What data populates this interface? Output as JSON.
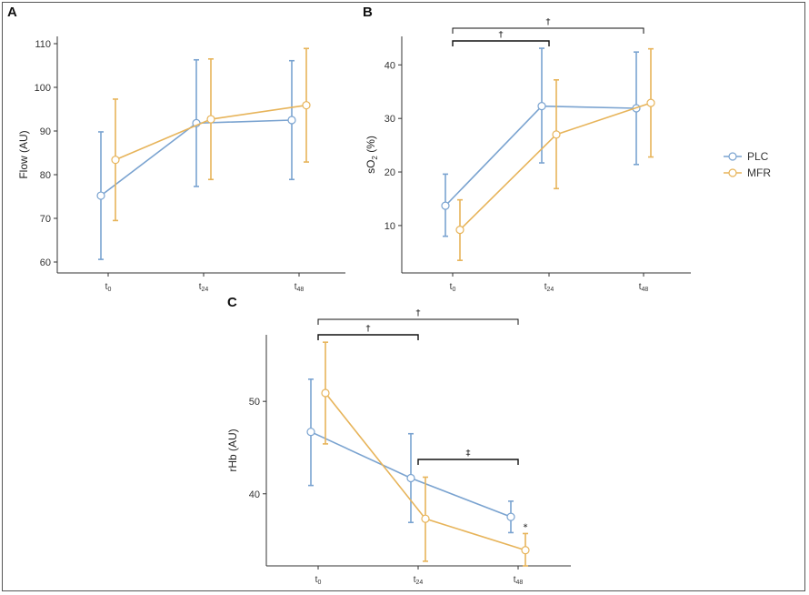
{
  "colors": {
    "PLC": "#7aa3d0",
    "MFR": "#e7b45a"
  },
  "legend": {
    "items": [
      {
        "key": "PLC",
        "label": "PLC"
      },
      {
        "key": "MFR",
        "label": "MFR"
      }
    ]
  },
  "chart_data": [
    {
      "panel": "A",
      "type": "line",
      "ylabel": "Flow (AU)",
      "ylim": [
        60,
        110
      ],
      "yticks": [
        60,
        70,
        80,
        90,
        100,
        110
      ],
      "categories": [
        {
          "main": "t",
          "sub": "0"
        },
        {
          "main": "t",
          "sub": "24"
        },
        {
          "main": "t",
          "sub": "48"
        }
      ],
      "series": [
        {
          "name": "PLC",
          "values": [
            75.2,
            91.8,
            92.5
          ],
          "lower": [
            60.6,
            77.3,
            78.9
          ],
          "upper": [
            89.8,
            106.3,
            106.1
          ]
        },
        {
          "name": "MFR",
          "values": [
            83.4,
            92.7,
            95.9
          ],
          "lower": [
            69.5,
            78.9,
            82.9
          ],
          "upper": [
            97.3,
            106.5,
            108.9
          ]
        }
      ],
      "brackets": []
    },
    {
      "panel": "B",
      "type": "line",
      "ylabel_main": "sO",
      "ylabel_sub": "2",
      "ylabel_rest": " (%)",
      "ylim": [
        2,
        46
      ],
      "yticks": [
        10,
        20,
        30,
        40
      ],
      "categories": [
        {
          "main": "t",
          "sub": "0"
        },
        {
          "main": "t",
          "sub": "24"
        },
        {
          "main": "t",
          "sub": "48"
        }
      ],
      "series": [
        {
          "name": "PLC",
          "values": [
            13.7,
            32.3,
            31.9
          ],
          "lower": [
            8.0,
            21.7,
            21.4
          ],
          "upper": [
            19.6,
            43.1,
            42.4
          ]
        },
        {
          "name": "MFR",
          "values": [
            9.2,
            27.0,
            32.9
          ],
          "lower": [
            3.5,
            16.9,
            22.8
          ],
          "upper": [
            14.8,
            37.2,
            43.0
          ]
        }
      ],
      "brackets": [
        {
          "from": 0,
          "to": 1,
          "symbol": "†",
          "level": 1
        },
        {
          "from": 0,
          "to": 2,
          "symbol": "†",
          "level": 2
        }
      ]
    },
    {
      "panel": "C",
      "type": "line",
      "ylabel": "rHb (AU)",
      "ylim": [
        32.2,
        57.4
      ],
      "yticks": [
        40,
        50
      ],
      "categories": [
        {
          "main": "t",
          "sub": "0"
        },
        {
          "main": "t",
          "sub": "24"
        },
        {
          "main": "t",
          "sub": "48"
        }
      ],
      "series": [
        {
          "name": "PLC",
          "values": [
            46.7,
            41.7,
            37.5
          ],
          "lower": [
            40.9,
            36.9,
            35.8
          ],
          "upper": [
            52.4,
            46.5,
            39.2
          ]
        },
        {
          "name": "MFR",
          "values": [
            50.9,
            37.3,
            33.9
          ],
          "lower": [
            45.4,
            32.7,
            32.2
          ],
          "upper": [
            56.4,
            41.8,
            35.7
          ]
        }
      ],
      "brackets": [
        {
          "from": 0,
          "to": 1,
          "symbol": "†",
          "level": 1
        },
        {
          "from": 0,
          "to": 2,
          "symbol": "†",
          "level": 2
        },
        {
          "from": 1,
          "to": 2,
          "symbol": "‡",
          "level": 0
        }
      ],
      "point_marks": [
        {
          "series": "MFR",
          "index": 2,
          "symbol": "*"
        }
      ]
    }
  ]
}
